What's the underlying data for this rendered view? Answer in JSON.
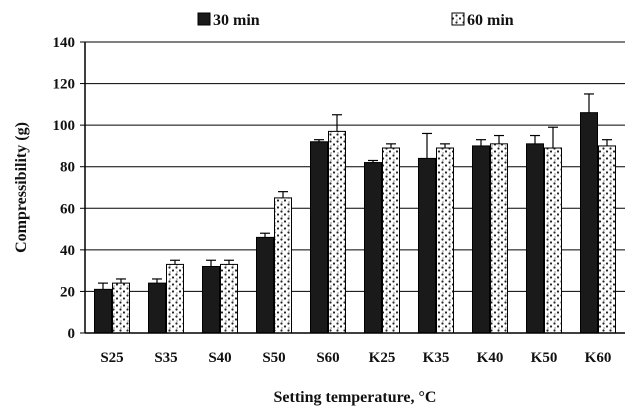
{
  "chart_data": {
    "type": "bar",
    "categories": [
      "S25",
      "S35",
      "S40",
      "S50",
      "S60",
      "K25",
      "K35",
      "K40",
      "K50",
      "K60"
    ],
    "series": [
      {
        "name": "30 min",
        "values": [
          21,
          24,
          32,
          46,
          92,
          82,
          84,
          90,
          91,
          106
        ],
        "errors": [
          3,
          2,
          3,
          2,
          1,
          1,
          12,
          3,
          4,
          9
        ],
        "pattern": "solid-dark"
      },
      {
        "name": "60 min",
        "values": [
          24,
          33,
          33,
          65,
          97,
          89,
          89,
          91,
          89,
          90
        ],
        "errors": [
          2,
          2,
          2,
          3,
          8,
          2,
          2,
          4,
          10,
          3
        ],
        "pattern": "speckled"
      }
    ],
    "xlabel": "Setting temperature, °C",
    "ylabel": "Compressibility (g)",
    "ylim": [
      0,
      140
    ],
    "yticks": [
      0,
      20,
      40,
      60,
      80,
      100,
      120,
      140
    ],
    "grid": true,
    "legend_position": "top",
    "colors": {
      "dark_bar": "#1a1a1a",
      "light_bar": "#ffffff",
      "axis": "#000000"
    }
  }
}
